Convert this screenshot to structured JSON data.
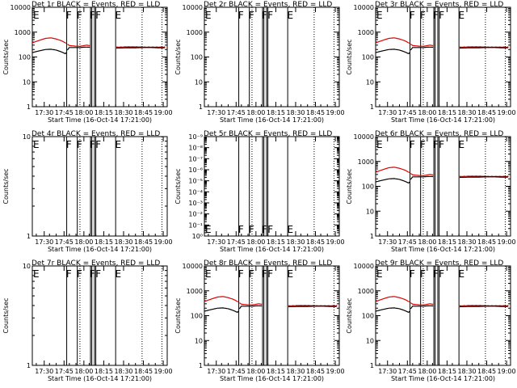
{
  "chart_data": [
    {
      "type": "line",
      "title": "Det 1r BLACK = Events, RED = LLD",
      "ylabel": "Counts/sec",
      "xlabel": "Start Time (16-Oct-14 17:21:00)",
      "yscale": "log",
      "ylim": [
        1,
        10000
      ],
      "yticks": [
        "1",
        "10",
        "100",
        "1000",
        "10000"
      ],
      "flags": [
        {
          "label": "E",
          "t": 0
        },
        {
          "label": "F",
          "t": 25
        },
        {
          "label": "F",
          "t": 33
        },
        {
          "label": "FF",
          "t": 43
        },
        {
          "label": "E",
          "t": 62
        }
      ],
      "series": [
        {
          "name": "LLD",
          "color": "#dd0000",
          "has_data": true
        },
        {
          "name": "Events",
          "color": "#000000",
          "has_data": true
        }
      ]
    },
    {
      "type": "line",
      "title": "Det 2r BLACK = Events, RED = LLD",
      "ylabel": "Counts/sec",
      "xlabel": "Start Time (16-Oct-14 17:21:00)",
      "yscale": "log",
      "ylim": [
        1,
        10000
      ],
      "yticks": [
        "1",
        "10",
        "100",
        "1000",
        "10000"
      ],
      "flags": [
        {
          "label": "E",
          "t": 0
        },
        {
          "label": "F",
          "t": 25
        },
        {
          "label": "F",
          "t": 33
        },
        {
          "label": "FF",
          "t": 43
        },
        {
          "label": "E",
          "t": 62
        }
      ],
      "series": [
        {
          "name": "LLD",
          "color": "#dd0000",
          "has_data": false
        },
        {
          "name": "Events",
          "color": "#000000",
          "has_data": false
        }
      ]
    },
    {
      "type": "line",
      "title": "Det 3r BLACK = Events, RED = LLD",
      "ylabel": "Counts/sec",
      "xlabel": "Start Time (16-Oct-14 17:21:00)",
      "yscale": "log",
      "ylim": [
        1,
        10000
      ],
      "yticks": [
        "1",
        "10",
        "100",
        "1000",
        "10000"
      ],
      "flags": [
        {
          "label": "E",
          "t": 0
        },
        {
          "label": "F",
          "t": 25
        },
        {
          "label": "F",
          "t": 33
        },
        {
          "label": "FF",
          "t": 43
        },
        {
          "label": "E",
          "t": 62
        }
      ],
      "series": [
        {
          "name": "LLD",
          "color": "#dd0000",
          "has_data": true
        },
        {
          "name": "Events",
          "color": "#000000",
          "has_data": true
        }
      ]
    },
    {
      "type": "line",
      "title": "Det 4r BLACK = Events, RED = LLD",
      "ylabel": "Counts/sec",
      "xlabel": "Start Time (16-Oct-14 17:21:00)",
      "yscale": "log",
      "ylim": [
        1,
        10
      ],
      "yticks": [
        "1",
        "10"
      ],
      "flags": [
        {
          "label": "E",
          "t": 0
        },
        {
          "label": "F",
          "t": 25
        },
        {
          "label": "F",
          "t": 33
        },
        {
          "label": "FF",
          "t": 43
        },
        {
          "label": "E",
          "t": 62
        }
      ],
      "series": [
        {
          "name": "LLD",
          "color": "#dd0000",
          "has_data": false
        },
        {
          "name": "Events",
          "color": "#000000",
          "has_data": false
        }
      ]
    },
    {
      "type": "line",
      "title": "Det 5r BLACK = Events, RED = LLD",
      "ylabel": "Counts/sec",
      "xlabel": "Start Time (16-Oct-14 17:21:00)",
      "yscale": "log",
      "ylim": [
        1,
        1e-09
      ],
      "yticks": [
        "10⁰",
        "10⁻¹",
        "10⁻²",
        "10⁻³",
        "10⁻⁴",
        "10⁻⁵",
        "10⁻⁶",
        "10⁻⁷",
        "10⁻⁸",
        "10⁻⁹"
      ],
      "flags": [
        {
          "label": "E",
          "t": 0
        },
        {
          "label": "F",
          "t": 25
        },
        {
          "label": "F",
          "t": 33
        },
        {
          "label": "FF",
          "t": 43
        },
        {
          "label": "E",
          "t": 62
        }
      ],
      "series": [
        {
          "name": "LLD",
          "color": "#dd0000",
          "has_data": false
        },
        {
          "name": "Events",
          "color": "#000000",
          "has_data": false
        }
      ]
    },
    {
      "type": "line",
      "title": "Det 6r BLACK = Events, RED = LLD",
      "ylabel": "Counts/sec",
      "xlabel": "Start Time (16-Oct-14 17:21:00)",
      "yscale": "log",
      "ylim": [
        1,
        10000
      ],
      "yticks": [
        "1",
        "10",
        "100",
        "1000",
        "10000"
      ],
      "flags": [
        {
          "label": "E",
          "t": 0
        },
        {
          "label": "F",
          "t": 25
        },
        {
          "label": "F",
          "t": 33
        },
        {
          "label": "FF",
          "t": 43
        },
        {
          "label": "E",
          "t": 62
        }
      ],
      "series": [
        {
          "name": "LLD",
          "color": "#dd0000",
          "has_data": true
        },
        {
          "name": "Events",
          "color": "#000000",
          "has_data": true
        }
      ]
    },
    {
      "type": "line",
      "title": "Det 7r BLACK = Events, RED = LLD",
      "ylabel": "Counts/sec",
      "xlabel": "Start Time (16-Oct-14 17:21:00)",
      "yscale": "log",
      "ylim": [
        1,
        10
      ],
      "yticks": [
        "1",
        "10"
      ],
      "flags": [
        {
          "label": "E",
          "t": 0
        },
        {
          "label": "F",
          "t": 25
        },
        {
          "label": "F",
          "t": 33
        },
        {
          "label": "FF",
          "t": 43
        },
        {
          "label": "E",
          "t": 62
        }
      ],
      "series": [
        {
          "name": "LLD",
          "color": "#dd0000",
          "has_data": false
        },
        {
          "name": "Events",
          "color": "#000000",
          "has_data": false
        }
      ]
    },
    {
      "type": "line",
      "title": "Det 8r BLACK = Events, RED = LLD",
      "ylabel": "Counts/sec",
      "xlabel": "Start Time (16-Oct-14 17:21:00)",
      "yscale": "log",
      "ylim": [
        1,
        10000
      ],
      "yticks": [
        "1",
        "10",
        "100",
        "1000",
        "10000"
      ],
      "flags": [
        {
          "label": "E",
          "t": 0
        },
        {
          "label": "F",
          "t": 25
        },
        {
          "label": "F",
          "t": 33
        },
        {
          "label": "FF",
          "t": 43
        },
        {
          "label": "E",
          "t": 62
        }
      ],
      "series": [
        {
          "name": "LLD",
          "color": "#dd0000",
          "has_data": true
        },
        {
          "name": "Events",
          "color": "#000000",
          "has_data": true
        }
      ]
    },
    {
      "type": "line",
      "title": "Det 9r BLACK = Events, RED = LLD",
      "ylabel": "Counts/sec",
      "xlabel": "Start Time (16-Oct-14 17:21:00)",
      "yscale": "log",
      "ylim": [
        1,
        10000
      ],
      "yticks": [
        "1",
        "10",
        "100",
        "1000",
        "10000"
      ],
      "flags": [
        {
          "label": "E",
          "t": 0
        },
        {
          "label": "F",
          "t": 25
        },
        {
          "label": "F",
          "t": 33
        },
        {
          "label": "FF",
          "t": 43
        },
        {
          "label": "E",
          "t": 62
        }
      ],
      "series": [
        {
          "name": "LLD",
          "color": "#dd0000",
          "has_data": true
        },
        {
          "name": "Events",
          "color": "#000000",
          "has_data": true
        }
      ]
    }
  ],
  "shared": {
    "time_range_min": [
      0,
      40
    ],
    "xticks": [
      "17:30",
      "17:45",
      "18:00",
      "18:15",
      "18:30",
      "18:45",
      "19:00"
    ],
    "xtick_minutes": [
      9,
      24,
      39,
      54,
      69,
      84,
      99
    ],
    "x_max_minutes": 102,
    "solid_markers_min": [
      26,
      34,
      44,
      45,
      47,
      48,
      63
    ],
    "dotted_markers_min": [
      36,
      83,
      98
    ],
    "lld_profile": [
      [
        0,
        370
      ],
      [
        5,
        460
      ],
      [
        10,
        560
      ],
      [
        14,
        590
      ],
      [
        18,
        530
      ],
      [
        22,
        450
      ],
      [
        25,
        370
      ],
      [
        28,
        290
      ],
      [
        33,
        270
      ],
      [
        36,
        270
      ],
      [
        38,
        280
      ],
      [
        41,
        300
      ],
      [
        44,
        285
      ],
      [
        48,
        260
      ],
      [
        60,
        245
      ],
      [
        66,
        250
      ],
      [
        72,
        255
      ],
      [
        78,
        255
      ],
      [
        84,
        250
      ],
      [
        90,
        250
      ],
      [
        95,
        250
      ],
      [
        100,
        250
      ]
    ],
    "evt_profile": [
      [
        0,
        150
      ],
      [
        5,
        175
      ],
      [
        10,
        200
      ],
      [
        14,
        205
      ],
      [
        18,
        190
      ],
      [
        22,
        160
      ],
      [
        25,
        135
      ],
      [
        28,
        240
      ],
      [
        33,
        240
      ],
      [
        36,
        240
      ],
      [
        38,
        245
      ],
      [
        41,
        250
      ],
      [
        44,
        245
      ],
      [
        48,
        230
      ],
      [
        60,
        225
      ],
      [
        66,
        230
      ],
      [
        72,
        235
      ],
      [
        78,
        235
      ],
      [
        84,
        240
      ],
      [
        90,
        240
      ],
      [
        95,
        235
      ],
      [
        100,
        235
      ]
    ]
  },
  "colors": {
    "lld": "#dd0000",
    "events": "#000000",
    "axis": "#000000"
  }
}
